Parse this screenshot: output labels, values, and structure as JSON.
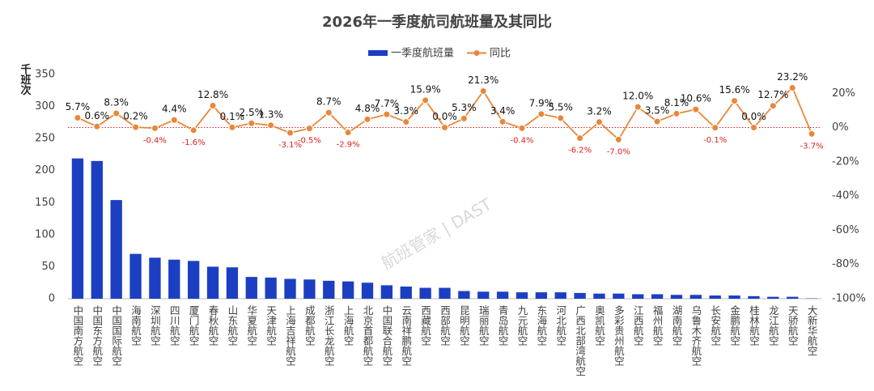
{
  "chart_data": {
    "type": "bar_line",
    "title": "2026年一季度航司航班量及其同比",
    "y_label": "千班次",
    "watermark": "航班管家 | DAST",
    "categories": [
      "中国南方航空",
      "中国东方航空",
      "中国国际航空",
      "海南航空",
      "深圳航空",
      "四川航空",
      "厦门航空",
      "春秋航空",
      "山东航空",
      "华夏航空",
      "天津航空",
      "上海吉祥航空",
      "成都航空",
      "浙江长龙航空",
      "上海航空",
      "北京首都航空",
      "中国联合航空",
      "云南祥鹏航空",
      "西藏航空",
      "西部航空",
      "昆明航空",
      "瑞丽航空",
      "青岛航空",
      "九元航空",
      "东海航空",
      "河北航空",
      "广西北部湾航空",
      "奥凯航空",
      "多彩贵州航空",
      "江西航空",
      "福州航空",
      "湖南航空",
      "乌鲁木齐航空",
      "长安航空",
      "金鹏航空",
      "桂林航空",
      "龙江航空",
      "天骄航空",
      "大新华航空"
    ],
    "series": [
      {
        "name": "一季度航班量",
        "type": "bar",
        "color": "#1c3fc2",
        "values": [
          219,
          215,
          154,
          70,
          64,
          61,
          59,
          50,
          49,
          34,
          33,
          31,
          30,
          28,
          27,
          25,
          21,
          19,
          17,
          17,
          12,
          11,
          11,
          10,
          10,
          10,
          9,
          8,
          8,
          7,
          7,
          6,
          6,
          5,
          5,
          4,
          3,
          3,
          0.5
        ]
      },
      {
        "name": "同比",
        "type": "line",
        "axis": "y2",
        "color": "#e8873a",
        "values": [
          5.7,
          0.6,
          8.3,
          0.2,
          -0.4,
          4.4,
          -1.6,
          12.8,
          0.1,
          2.5,
          1.3,
          -3.1,
          -0.5,
          8.7,
          -2.9,
          4.8,
          7.7,
          3.3,
          15.9,
          0.0,
          5.3,
          21.3,
          3.4,
          -0.4,
          7.9,
          5.5,
          -6.2,
          3.2,
          -7.0,
          12.0,
          3.5,
          8.1,
          10.6,
          -0.1,
          15.6,
          0.0,
          12.7,
          23.2,
          -3.7
        ],
        "value_labels": [
          "5.7%",
          "0.6%",
          "8.3%",
          "0.2%",
          "-0.4%",
          "4.4%",
          "-1.6%",
          "12.8%",
          "0.1%",
          "2.5%",
          "1.3%",
          "-3.1%",
          "-0.5%",
          "8.7%",
          "-2.9%",
          "4.8%",
          "7.7%",
          "3.3%",
          "15.9%",
          "0.0%",
          "5.3%",
          "21.3%",
          "3.4%",
          "-0.4%",
          "7.9%",
          "5.5%",
          "-6.2%",
          "3.2%",
          "-7.0%",
          "12.0%",
          "3.5%",
          "8.1%",
          "10.6%",
          "-0.1%",
          "15.6%",
          "0.0%",
          "12.7%",
          "23.2%",
          "-3.7%"
        ]
      }
    ],
    "ylim": [
      0,
      350
    ],
    "yticks": [
      0,
      50,
      100,
      150,
      200,
      250,
      300,
      350
    ],
    "y2lim": [
      -100,
      31
    ],
    "y2ticks": [
      {
        "value": -100,
        "label": "-100%"
      },
      {
        "value": -80,
        "label": "-80%"
      },
      {
        "value": -60,
        "label": "-60%"
      },
      {
        "value": -40,
        "label": "-40%"
      },
      {
        "value": -20,
        "label": "-20%"
      },
      {
        "value": 0,
        "label": "0%"
      },
      {
        "value": 20,
        "label": "20%"
      }
    ],
    "negative_label_color": "#e02020",
    "zero_line_color": "#e02020"
  }
}
